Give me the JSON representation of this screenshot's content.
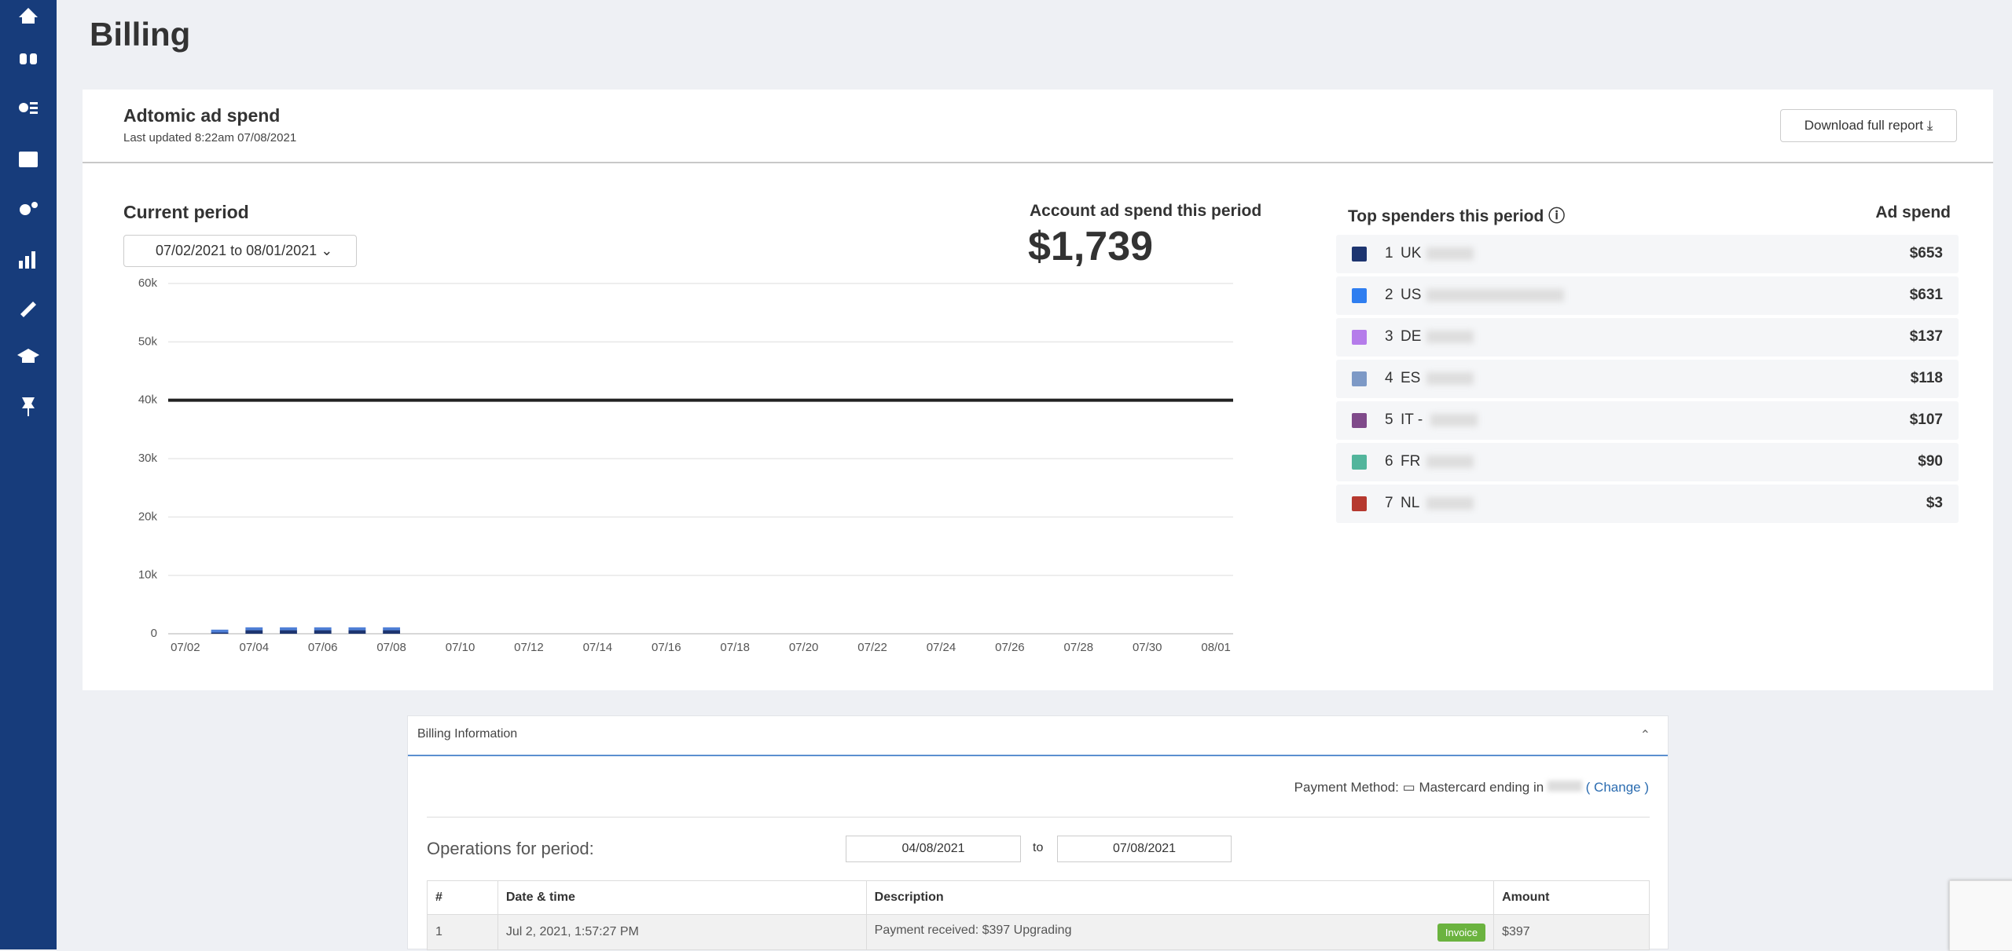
{
  "page_title": "Billing",
  "card": {
    "title": "Adtomic ad spend",
    "last_updated": "Last updated 8:22am 07/08/2021",
    "download_button": "Download full report",
    "period_label": "Current period",
    "period_range": "07/02/2021 to 08/01/2021",
    "spend_label": "Account ad spend this period",
    "spend_total": "$1,739"
  },
  "chart_data": {
    "type": "bar",
    "stacked": true,
    "categories": [
      "07/02",
      null,
      "07/04",
      null,
      "07/06",
      null,
      "07/08",
      null,
      "07/10",
      null,
      "07/12",
      null,
      "07/14",
      null,
      "07/16",
      null,
      "07/18",
      null,
      "07/20",
      null,
      "07/22",
      null,
      "07/24",
      null,
      "07/26",
      null,
      "07/28",
      null,
      "07/30",
      null,
      "08/01"
    ],
    "series": [
      {
        "color": "#1d3570",
        "values": [
          null,
          200,
          600,
          600,
          600,
          600,
          600,
          null,
          null,
          null,
          null,
          null,
          null,
          null,
          null,
          null,
          null,
          null,
          null,
          null,
          null,
          null,
          null,
          null,
          null,
          null,
          null,
          null,
          null,
          null,
          null
        ]
      },
      {
        "color": "#4f7fd6",
        "values": [
          null,
          500,
          500,
          500,
          500,
          500,
          500,
          null,
          null,
          null,
          null,
          null,
          null,
          null,
          null,
          null,
          null,
          null,
          null,
          null,
          null,
          null,
          null,
          null,
          null,
          null,
          null,
          null,
          null,
          null,
          null
        ]
      }
    ],
    "reference_line": {
      "value": 40000,
      "color": "#222222"
    },
    "ylim": [
      0,
      60000
    ],
    "yticks": [
      0,
      {
        "value": 10000,
        "label": "10k"
      },
      {
        "value": 20000,
        "label": "20k"
      },
      {
        "value": 30000,
        "label": "30k"
      },
      {
        "value": 40000,
        "label": "40k"
      },
      {
        "value": 50000,
        "label": "50k"
      },
      {
        "value": 60000,
        "label": "60k"
      }
    ],
    "grid": true
  },
  "top_spenders": {
    "title": "Top spenders this period",
    "amount_header": "Ad spend",
    "rows": [
      {
        "rank": "1",
        "code": "UK",
        "color": "#1d3570",
        "amount": "$653"
      },
      {
        "rank": "2",
        "code": "US",
        "color": "#2f7ef0",
        "amount": "$631"
      },
      {
        "rank": "3",
        "code": "DE",
        "color": "#b57cea",
        "amount": "$137"
      },
      {
        "rank": "4",
        "code": "ES",
        "color": "#7d99c6",
        "amount": "$118"
      },
      {
        "rank": "5",
        "code": "IT -",
        "color": "#7f4a8a",
        "amount": "$107"
      },
      {
        "rank": "6",
        "code": "FR",
        "color": "#52b59c",
        "amount": "$90"
      },
      {
        "rank": "7",
        "code": "NL",
        "color": "#b6392f",
        "amount": "$3"
      }
    ]
  },
  "billing": {
    "header": "Billing Information",
    "payment_label": "Payment Method:",
    "card_text": "Mastercard ending in",
    "change_link": "( Change )",
    "operations_label": "Operations for period:",
    "from_date": "04/08/2021",
    "to_label": "to",
    "to_date": "07/08/2021",
    "table": {
      "headers": [
        "#",
        "Date & time",
        "Description",
        "Amount"
      ],
      "rows": [
        [
          "1",
          "Jul 2, 2021, 1:57:27 PM",
          "Payment received: $397 Upgrading",
          "$397"
        ]
      ]
    },
    "invoice_button": "Invoice"
  }
}
